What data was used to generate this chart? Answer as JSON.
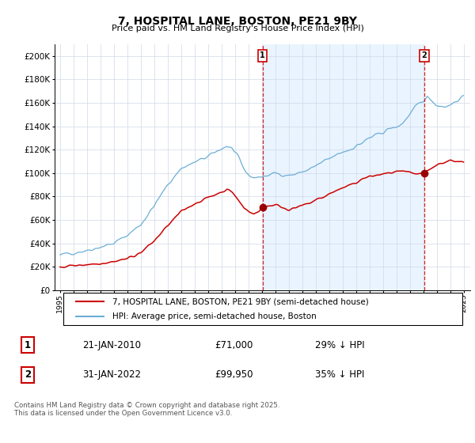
{
  "title": "7, HOSPITAL LANE, BOSTON, PE21 9BY",
  "subtitle": "Price paid vs. HM Land Registry's House Price Index (HPI)",
  "legend_line1": "7, HOSPITAL LANE, BOSTON, PE21 9BY (semi-detached house)",
  "legend_line2": "HPI: Average price, semi-detached house, Boston",
  "sale1_label": "1",
  "sale1_date": "21-JAN-2010",
  "sale1_price": "£71,000",
  "sale1_hpi": "29% ↓ HPI",
  "sale1_x": 2010.05,
  "sale1_y": 71000,
  "sale2_label": "2",
  "sale2_date": "31-JAN-2022",
  "sale2_price": "£99,950",
  "sale2_hpi": "35% ↓ HPI",
  "sale2_x": 2022.08,
  "sale2_y": 99950,
  "vline1_x": 2010.05,
  "vline2_x": 2022.08,
  "yticks": [
    0,
    20000,
    40000,
    60000,
    80000,
    100000,
    120000,
    140000,
    160000,
    180000,
    200000
  ],
  "ytick_labels": [
    "£0",
    "£20K",
    "£40K",
    "£60K",
    "£80K",
    "£100K",
    "£120K",
    "£140K",
    "£160K",
    "£180K",
    "£200K"
  ],
  "xmin": 1994.6,
  "xmax": 2025.5,
  "ymin": 0,
  "ymax": 210000,
  "hpi_color": "#6baed6",
  "hpi_shade_color": "#ddeeff",
  "price_color": "#cc0000",
  "vline_color": "#cc0000",
  "marker_color": "#990000",
  "footer": "Contains HM Land Registry data © Crown copyright and database right 2025.\nThis data is licensed under the Open Government Licence v3.0.",
  "xticks": [
    1995,
    1996,
    1997,
    1998,
    1999,
    2000,
    2001,
    2002,
    2003,
    2004,
    2005,
    2006,
    2007,
    2008,
    2009,
    2010,
    2011,
    2012,
    2013,
    2014,
    2015,
    2016,
    2017,
    2018,
    2019,
    2020,
    2021,
    2022,
    2023,
    2024,
    2025
  ],
  "bg_color": "#ffffff",
  "grid_color": "#d0d8e8",
  "shade_alpha": 0.25
}
